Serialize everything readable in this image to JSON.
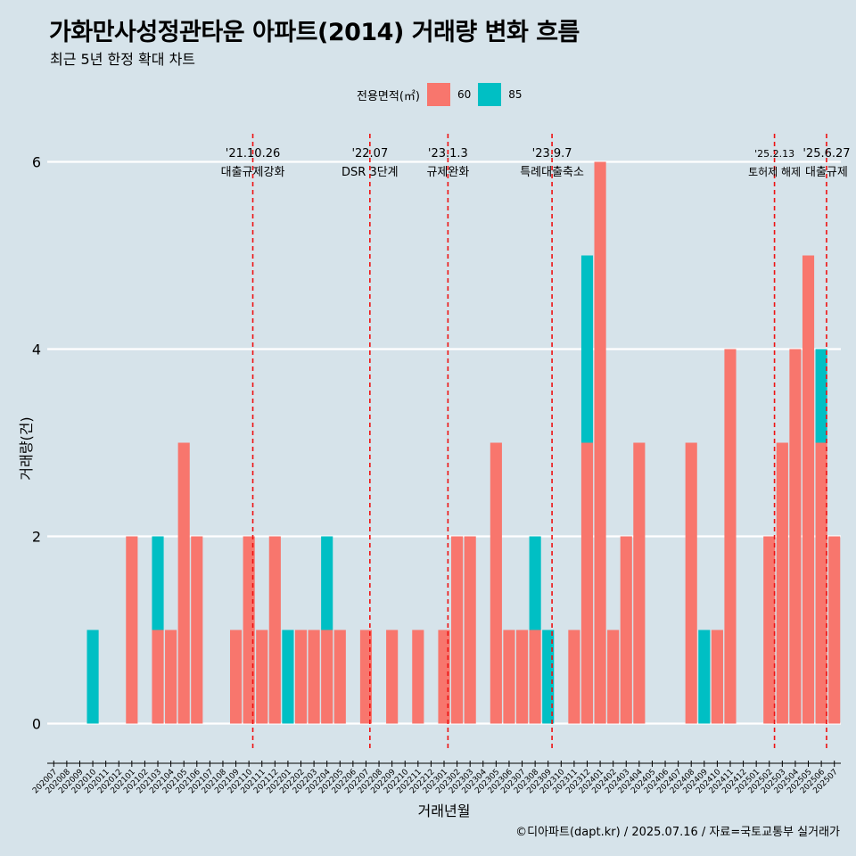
{
  "title": "가화만사성정관타운 아파트(2014) 거래량 변화 흐름",
  "subtitle": "최근 5년 한정 확대 차트",
  "legend": {
    "title": "전용면적(㎡)",
    "items": [
      {
        "label": "60",
        "color": "#F8766D"
      },
      {
        "label": "85",
        "color": "#00BFC4"
      }
    ]
  },
  "caption": "©디아파트(dapt.kr) / 2025.07.16 / 자료=국토교통부 실거래가",
  "chart_data": {
    "type": "bar",
    "stacked": true,
    "title": "가화만사성정관타운 아파트(2014) 거래량 변화 흐름",
    "subtitle": "최근 5년 한정 확대 차트",
    "xlabel": "거래년월",
    "ylabel": "거래량(건)",
    "ylim": [
      -0.3,
      6.3
    ],
    "yticks": [
      0,
      2,
      4,
      6
    ],
    "grid": "horizontal",
    "legend_position": "top",
    "categories": [
      "202007",
      "202008",
      "202009",
      "202010",
      "202011",
      "202012",
      "202101",
      "202102",
      "202103",
      "202104",
      "202105",
      "202106",
      "202107",
      "202108",
      "202109",
      "202110",
      "202111",
      "202112",
      "202201",
      "202202",
      "202203",
      "202204",
      "202205",
      "202206",
      "202207",
      "202208",
      "202209",
      "202210",
      "202211",
      "202212",
      "202301",
      "202302",
      "202303",
      "202304",
      "202305",
      "202306",
      "202307",
      "202308",
      "202309",
      "202310",
      "202311",
      "202312",
      "202401",
      "202402",
      "202403",
      "202404",
      "202405",
      "202406",
      "202407",
      "202408",
      "202409",
      "202410",
      "202411",
      "202412",
      "202501",
      "202502",
      "202503",
      "202504",
      "202505",
      "202506",
      "202507"
    ],
    "series": [
      {
        "name": "60",
        "color": "#F8766D",
        "values": [
          0,
          0,
          0,
          0,
          0,
          0,
          2,
          0,
          1,
          1,
          3,
          2,
          0,
          0,
          1,
          2,
          1,
          2,
          0,
          1,
          1,
          1,
          1,
          0,
          1,
          0,
          1,
          0,
          1,
          0,
          1,
          2,
          2,
          0,
          3,
          1,
          1,
          1,
          0,
          0,
          1,
          3,
          6,
          1,
          2,
          3,
          0,
          0,
          0,
          3,
          0,
          1,
          4,
          0,
          0,
          2,
          3,
          4,
          5,
          3,
          2
        ]
      },
      {
        "name": "85",
        "color": "#00BFC4",
        "values": [
          0,
          0,
          0,
          1,
          0,
          0,
          0,
          0,
          1,
          0,
          0,
          0,
          0,
          0,
          0,
          0,
          0,
          0,
          1,
          0,
          0,
          1,
          0,
          0,
          0,
          0,
          0,
          0,
          0,
          0,
          0,
          0,
          0,
          0,
          0,
          0,
          0,
          1,
          1,
          0,
          0,
          2,
          0,
          0,
          0,
          0,
          0,
          0,
          0,
          0,
          1,
          0,
          0,
          0,
          0,
          0,
          0,
          0,
          0,
          1,
          0
        ]
      }
    ],
    "events": [
      {
        "date": "'21.10.26",
        "label": "대출규제강화",
        "position": 15.3
      },
      {
        "date": "'22.07",
        "label": "DSR 3단계",
        "position": 24.3
      },
      {
        "date": "'23.1.3",
        "label": "규제완화",
        "position": 30.3
      },
      {
        "date": "'23.9.7",
        "label": "특례대출축소",
        "position": 38.3
      },
      {
        "date": "'25.2.13",
        "label": "토허제 해제",
        "position": 55.4
      },
      {
        "date": "'25.6.27",
        "label": "대출규제",
        "position": 59.4
      }
    ]
  }
}
